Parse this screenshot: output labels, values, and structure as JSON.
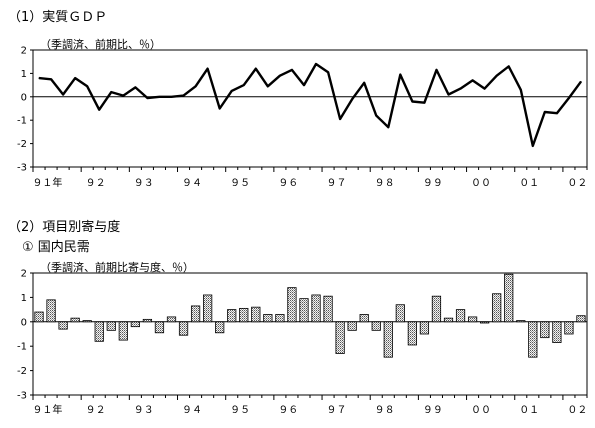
{
  "section1": {
    "title": "（1）実質ＧＤＰ",
    "unit": "（季調済、前期比、％）"
  },
  "section2": {
    "title": "（2）項目別寄与度",
    "subtitle": "①  国内民需",
    "unit": "（季調済、前期比寄与度、％）"
  },
  "chart_data": [
    {
      "type": "line",
      "title": "実質ＧＤＰ",
      "ylabel": "（季調済、前期比、％）",
      "ylim": [
        -3,
        2
      ],
      "yticks": [
        2,
        1,
        0,
        -1,
        -2,
        -3
      ],
      "xtick_labels": [
        "９１年",
        "９２",
        "９３",
        "９４",
        "９５",
        "９６",
        "９７",
        "９８",
        "９９",
        "００",
        "０１",
        "０２"
      ],
      "values": [
        0.8,
        0.75,
        0.1,
        0.8,
        0.45,
        -0.55,
        0.2,
        0.05,
        0.4,
        -0.05,
        0.0,
        0.0,
        0.05,
        0.45,
        1.2,
        -0.5,
        0.25,
        0.5,
        1.2,
        0.45,
        0.9,
        1.15,
        0.5,
        1.4,
        1.05,
        -0.95,
        -0.1,
        0.6,
        -0.8,
        -1.3,
        0.95,
        -0.2,
        -0.25,
        1.15,
        0.1,
        0.35,
        0.7,
        0.35,
        0.9,
        1.3,
        0.3,
        -2.1,
        -0.65,
        -0.7,
        -0.05,
        0.65
      ]
    },
    {
      "type": "bar",
      "title": "国内民需",
      "ylabel": "（季調済、前期比寄与度、％）",
      "ylim": [
        -3,
        2
      ],
      "yticks": [
        2,
        1,
        0,
        -1,
        -2,
        -3
      ],
      "xtick_labels": [
        "９１年",
        "９２",
        "９３",
        "９４",
        "９５",
        "９６",
        "９７",
        "９８",
        "９９",
        "００",
        "０１",
        "０２"
      ],
      "values": [
        0.4,
        0.9,
        -0.3,
        0.15,
        0.05,
        -0.8,
        -0.35,
        -0.75,
        -0.2,
        0.1,
        -0.45,
        0.2,
        -0.55,
        0.65,
        1.1,
        -0.45,
        0.5,
        0.55,
        0.6,
        0.3,
        0.3,
        1.4,
        0.95,
        1.1,
        1.05,
        -1.3,
        -0.35,
        0.3,
        -0.35,
        -1.45,
        0.7,
        -0.95,
        -0.5,
        1.05,
        0.15,
        0.5,
        0.2,
        -0.05,
        1.15,
        1.95,
        0.05,
        -1.45,
        -0.65,
        -0.85,
        -0.5,
        0.25
      ]
    }
  ]
}
